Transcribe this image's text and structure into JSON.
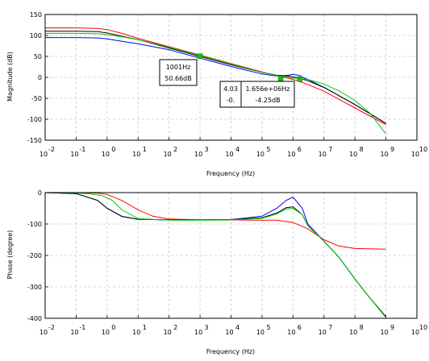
{
  "chart_data": [
    {
      "type": "line",
      "panel": "magnitude",
      "xscale": "log",
      "xlim": [
        0.01,
        10000000000
      ],
      "ylim": [
        -150,
        150
      ],
      "xticks": [
        {
          "base": "10",
          "exp": "-2"
        },
        {
          "base": "10",
          "exp": "-1"
        },
        {
          "base": "10",
          "exp": "0"
        },
        {
          "base": "10",
          "exp": "1"
        },
        {
          "base": "10",
          "exp": "2"
        },
        {
          "base": "10",
          "exp": "3"
        },
        {
          "base": "10",
          "exp": "4"
        },
        {
          "base": "10",
          "exp": "5"
        },
        {
          "base": "10",
          "exp": "6"
        },
        {
          "base": "10",
          "exp": "7"
        },
        {
          "base": "10",
          "exp": "8"
        },
        {
          "base": "10",
          "exp": "9"
        },
        {
          "base": "10",
          "exp": "10"
        }
      ],
      "yticks": [
        "150",
        "100",
        "50",
        "0",
        "-50",
        "-100",
        "-150"
      ],
      "xlabel": "Frequency (Hz)",
      "ylabel": "Magnitude (dB)",
      "grid": true,
      "series": [
        {
          "color": "#0000ff",
          "x": [
            0.01,
            0.1,
            0.5,
            1,
            3,
            10,
            100,
            1000,
            10000,
            100000,
            300000,
            700000,
            1000000,
            1500000,
            3000000,
            10000000,
            100000000,
            1000000000
          ],
          "y": [
            95,
            95,
            94,
            92,
            86,
            80,
            66,
            46,
            26,
            8,
            3,
            5,
            7,
            5,
            -5,
            -24,
            -65,
            -110
          ]
        },
        {
          "color": "#000000",
          "x": [
            0.01,
            0.1,
            0.5,
            1,
            3,
            10,
            100,
            1000,
            10000,
            100000,
            300000,
            700000,
            1000000,
            1500000,
            3000000,
            10000000,
            100000000,
            1000000000
          ],
          "y": [
            110,
            110,
            109,
            106,
            98,
            90,
            70,
            50,
            30,
            12,
            5,
            3,
            1,
            -1,
            -8,
            -24,
            -65,
            -110
          ]
        },
        {
          "color": "#ff0000",
          "x": [
            0.01,
            0.1,
            0.5,
            1,
            3,
            10,
            100,
            1000,
            10000,
            100000,
            300000,
            700000,
            1000000,
            1500000,
            3000000,
            10000000,
            100000000,
            1000000000
          ],
          "y": [
            118,
            118,
            117,
            114,
            105,
            93,
            73,
            53,
            33,
            13,
            4,
            -2,
            -5,
            -9,
            -17,
            -33,
            -73,
            -113
          ]
        },
        {
          "color": "#00cc00",
          "x": [
            0.01,
            0.1,
            0.5,
            1,
            3,
            10,
            100,
            1000,
            10000,
            100000,
            300000,
            700000,
            1000000,
            1500000,
            3000000,
            10000000,
            30000000,
            100000000,
            300000000,
            1000000000
          ],
          "y": [
            105,
            105,
            104,
            102,
            97,
            90,
            72,
            52,
            32,
            12,
            4,
            0,
            -2,
            -2,
            -5,
            -16,
            -32,
            -55,
            -85,
            -135
          ]
        }
      ],
      "markers": [
        {
          "x": 1001,
          "y": 50.66,
          "color": "#00cc00"
        },
        {
          "x": 400000,
          "y": -3,
          "color": "#00cc00"
        },
        {
          "x": 1656000,
          "y": -4.25,
          "color": "#00cc00"
        }
      ],
      "datatips": [
        {
          "lines": [
            "1001Hz",
            "50.66dB"
          ]
        },
        {
          "lines": [
            "4.03",
            "-0."
          ]
        },
        {
          "lines": [
            "1.656e+06Hz",
            "-4.25dB"
          ]
        }
      ]
    },
    {
      "type": "line",
      "panel": "phase",
      "xscale": "log",
      "xlim": [
        0.01,
        10000000000
      ],
      "ylim": [
        -400,
        0
      ],
      "xticks": [
        {
          "base": "10",
          "exp": "-2"
        },
        {
          "base": "10",
          "exp": "-1"
        },
        {
          "base": "10",
          "exp": "0"
        },
        {
          "base": "10",
          "exp": "1"
        },
        {
          "base": "10",
          "exp": "2"
        },
        {
          "base": "10",
          "exp": "3"
        },
        {
          "base": "10",
          "exp": "4"
        },
        {
          "base": "10",
          "exp": "5"
        },
        {
          "base": "10",
          "exp": "6"
        },
        {
          "base": "10",
          "exp": "7"
        },
        {
          "base": "10",
          "exp": "8"
        },
        {
          "base": "10",
          "exp": "9"
        },
        {
          "base": "10",
          "exp": "10"
        }
      ],
      "yticks": [
        "0",
        "-100",
        "-200",
        "-300",
        "-400"
      ],
      "xlabel": "Frequency (Hz)",
      "ylabel": "Phase (degree)",
      "grid": true,
      "series": [
        {
          "color": "#ff0000",
          "x": [
            0.01,
            0.1,
            0.5,
            1,
            3,
            10,
            30,
            100,
            1000,
            10000,
            100000,
            300000,
            1000000,
            3000000,
            10000000,
            30000000,
            100000000,
            1000000000
          ],
          "y": [
            0,
            0,
            -2,
            -6,
            -25,
            -55,
            -75,
            -84,
            -87,
            -87,
            -88,
            -88,
            -95,
            -115,
            -150,
            -170,
            -178,
            -180
          ]
        },
        {
          "color": "#0000ff",
          "x": [
            0.01,
            0.1,
            0.5,
            1,
            3,
            10,
            100,
            1000,
            10000,
            100000,
            300000,
            600000,
            1000000,
            2000000,
            3000000,
            10000000,
            30000000,
            100000000,
            300000000,
            1000000000
          ],
          "y": [
            0,
            -3,
            -25,
            -50,
            -76,
            -85,
            -87,
            -87,
            -86,
            -75,
            -50,
            -25,
            -14,
            -50,
            -100,
            -155,
            -205,
            -275,
            -335,
            -395
          ]
        },
        {
          "color": "#000000",
          "x": [
            0.01,
            0.1,
            0.5,
            1,
            3,
            10,
            100,
            1000,
            10000,
            100000,
            300000,
            600000,
            1000000,
            2000000,
            3000000,
            10000000,
            30000000,
            100000000,
            300000000,
            1000000000
          ],
          "y": [
            0,
            -3,
            -25,
            -50,
            -76,
            -85,
            -87,
            -87,
            -86,
            -80,
            -65,
            -48,
            -45,
            -70,
            -105,
            -155,
            -205,
            -275,
            -335,
            -395
          ]
        },
        {
          "color": "#00cc00",
          "x": [
            0.01,
            0.1,
            0.3,
            0.7,
            1.5,
            3,
            10,
            100,
            1000,
            10000,
            100000,
            300000,
            600000,
            1000000,
            2000000,
            3000000,
            10000000,
            30000000,
            100000000,
            300000000,
            1000000000
          ],
          "y": [
            0,
            -1,
            -5,
            -10,
            -25,
            -55,
            -83,
            -88,
            -88,
            -87,
            -82,
            -68,
            -52,
            -50,
            -70,
            -105,
            -155,
            -205,
            -275,
            -335,
            -398
          ]
        }
      ]
    }
  ]
}
